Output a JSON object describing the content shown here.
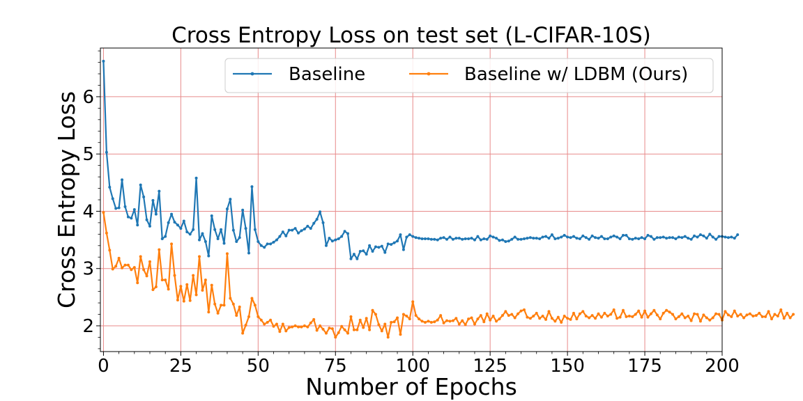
{
  "chart_data": {
    "type": "line",
    "title": "Cross Entropy Loss on test set (L-CIFAR-10S)",
    "xlabel": "Number of Epochs",
    "ylabel": "Cross Entropy Loss",
    "xlim": [
      -1,
      200
    ],
    "ylim": [
      1.55,
      6.85
    ],
    "xticks": [
      0,
      25,
      50,
      75,
      100,
      125,
      150,
      175,
      200
    ],
    "yticks": [
      2,
      3,
      4,
      5,
      6
    ],
    "grid": true,
    "legend_position": "top-right",
    "series": [
      {
        "name": "Baseline",
        "color": "#1f77b4",
        "values": [
          6.62,
          5.03,
          4.42,
          4.22,
          4.05,
          4.06,
          4.55,
          4.08,
          3.9,
          3.88,
          4.03,
          3.76,
          4.46,
          4.25,
          3.85,
          3.74,
          4.19,
          3.95,
          4.35,
          3.52,
          3.56,
          3.8,
          3.95,
          3.81,
          3.76,
          3.7,
          3.83,
          3.64,
          3.6,
          3.68,
          4.58,
          3.5,
          3.61,
          3.47,
          3.22,
          3.92,
          3.68,
          3.52,
          3.68,
          3.44,
          4.04,
          4.21,
          3.67,
          3.47,
          3.54,
          4.02,
          3.7,
          3.27,
          4.43,
          3.68,
          3.47,
          3.4,
          3.37,
          3.43,
          3.43,
          3.46,
          3.5,
          3.56,
          3.64,
          3.57,
          3.67,
          3.67,
          3.7,
          3.62,
          3.66,
          3.69,
          3.74,
          3.7,
          3.79,
          3.86,
          3.99,
          3.8,
          3.4,
          3.53,
          3.48,
          3.5,
          3.52,
          3.56,
          3.65,
          3.61,
          3.17,
          3.25,
          3.17,
          3.3,
          3.31,
          3.25,
          3.4,
          3.3,
          3.38,
          3.37,
          3.39,
          3.28,
          3.43,
          3.42,
          3.45,
          3.48,
          3.59,
          3.33,
          3.55,
          3.59,
          3.56,
          3.54,
          3.53,
          3.52,
          3.52,
          3.52,
          3.51,
          3.51,
          3.5,
          3.53,
          3.54,
          3.51,
          3.55,
          3.51,
          3.53,
          3.53,
          3.51,
          3.52,
          3.52,
          3.53,
          3.5,
          3.56,
          3.5,
          3.52,
          3.51,
          3.57,
          3.55,
          3.53,
          3.49,
          3.5,
          3.47,
          3.48,
          3.51,
          3.55,
          3.51,
          3.51,
          3.52,
          3.53,
          3.54,
          3.53,
          3.53,
          3.52,
          3.55,
          3.56,
          3.53,
          3.59,
          3.52,
          3.53,
          3.55,
          3.58,
          3.55,
          3.54,
          3.56,
          3.53,
          3.52,
          3.57,
          3.54,
          3.51,
          3.57,
          3.54,
          3.53,
          3.56,
          3.52,
          3.52,
          3.55,
          3.57,
          3.55,
          3.52,
          3.58,
          3.58,
          3.52,
          3.51,
          3.53,
          3.52,
          3.54,
          3.52,
          3.58,
          3.56,
          3.51,
          3.54,
          3.54,
          3.55,
          3.53,
          3.54,
          3.54,
          3.52,
          3.55,
          3.54,
          3.56,
          3.53,
          3.51,
          3.57,
          3.55,
          3.59,
          3.57,
          3.53,
          3.6,
          3.55,
          3.51,
          3.56,
          3.56,
          3.55,
          3.54,
          3.55,
          3.53,
          3.59
        ]
      },
      {
        "name": "Baseline w/ LDBM (Ours)",
        "color": "#ff7f0e",
        "values": [
          3.98,
          3.62,
          3.32,
          2.99,
          3.04,
          3.18,
          3.01,
          3.06,
          3.06,
          2.98,
          3.02,
          2.75,
          3.21,
          2.98,
          2.87,
          3.12,
          2.63,
          2.68,
          3.33,
          2.8,
          2.8,
          2.64,
          3.43,
          2.88,
          2.45,
          2.69,
          2.43,
          2.72,
          2.44,
          2.88,
          2.54,
          3.21,
          2.62,
          2.8,
          2.24,
          2.71,
          2.38,
          2.22,
          2.36,
          2.36,
          3.26,
          2.48,
          2.38,
          2.18,
          2.33,
          1.87,
          2.01,
          2.16,
          2.48,
          2.36,
          2.16,
          2.1,
          2.03,
          2.06,
          2.1,
          1.99,
          2.03,
          1.9,
          2.03,
          1.91,
          1.97,
          1.98,
          2.0,
          1.98,
          1.98,
          2.0,
          1.98,
          2.05,
          2.11,
          1.92,
          2.0,
          1.94,
          1.87,
          1.96,
          1.95,
          1.8,
          1.88,
          1.99,
          1.93,
          1.87,
          2.16,
          1.93,
          1.93,
          2.1,
          1.97,
          2.13,
          1.93,
          2.27,
          2.2,
          2.02,
          1.91,
          2.03,
          1.8,
          2.06,
          2.07,
          2.14,
          1.85,
          2.2,
          2.17,
          2.12,
          2.42,
          2.18,
          2.12,
          2.08,
          2.06,
          2.08,
          2.06,
          2.07,
          2.1,
          2.18,
          2.05,
          2.09,
          2.08,
          2.09,
          2.13,
          2.03,
          2.09,
          2.02,
          2.12,
          2.14,
          2.03,
          2.12,
          2.18,
          2.07,
          2.21,
          2.1,
          2.17,
          2.08,
          2.12,
          2.18,
          2.25,
          2.18,
          2.2,
          2.14,
          2.21,
          2.26,
          2.28,
          2.15,
          2.13,
          2.17,
          2.22,
          2.13,
          2.17,
          2.11,
          2.25,
          2.13,
          2.08,
          2.15,
          2.06,
          2.17,
          2.13,
          2.11,
          2.22,
          2.12,
          2.21,
          2.25,
          2.17,
          2.14,
          2.18,
          2.13,
          2.21,
          2.15,
          2.22,
          2.17,
          2.2,
          2.28,
          2.13,
          2.15,
          2.27,
          2.16,
          2.17,
          2.16,
          2.2,
          2.26,
          2.15,
          2.26,
          2.15,
          2.21,
          2.27,
          2.19,
          2.12,
          2.22,
          2.27,
          2.24,
          2.2,
          2.12,
          2.16,
          2.21,
          2.14,
          2.17,
          2.09,
          2.21,
          2.2,
          2.08,
          2.19,
          2.14,
          2.1,
          2.14,
          2.21,
          2.2,
          2.1,
          2.25,
          2.19,
          2.16,
          2.26,
          2.17,
          2.2,
          2.14,
          2.19,
          2.21,
          2.17,
          2.18,
          2.22,
          2.16,
          2.16,
          2.25,
          2.12,
          2.2,
          2.17,
          2.28,
          2.13,
          2.22,
          2.14,
          2.2
        ]
      }
    ]
  }
}
